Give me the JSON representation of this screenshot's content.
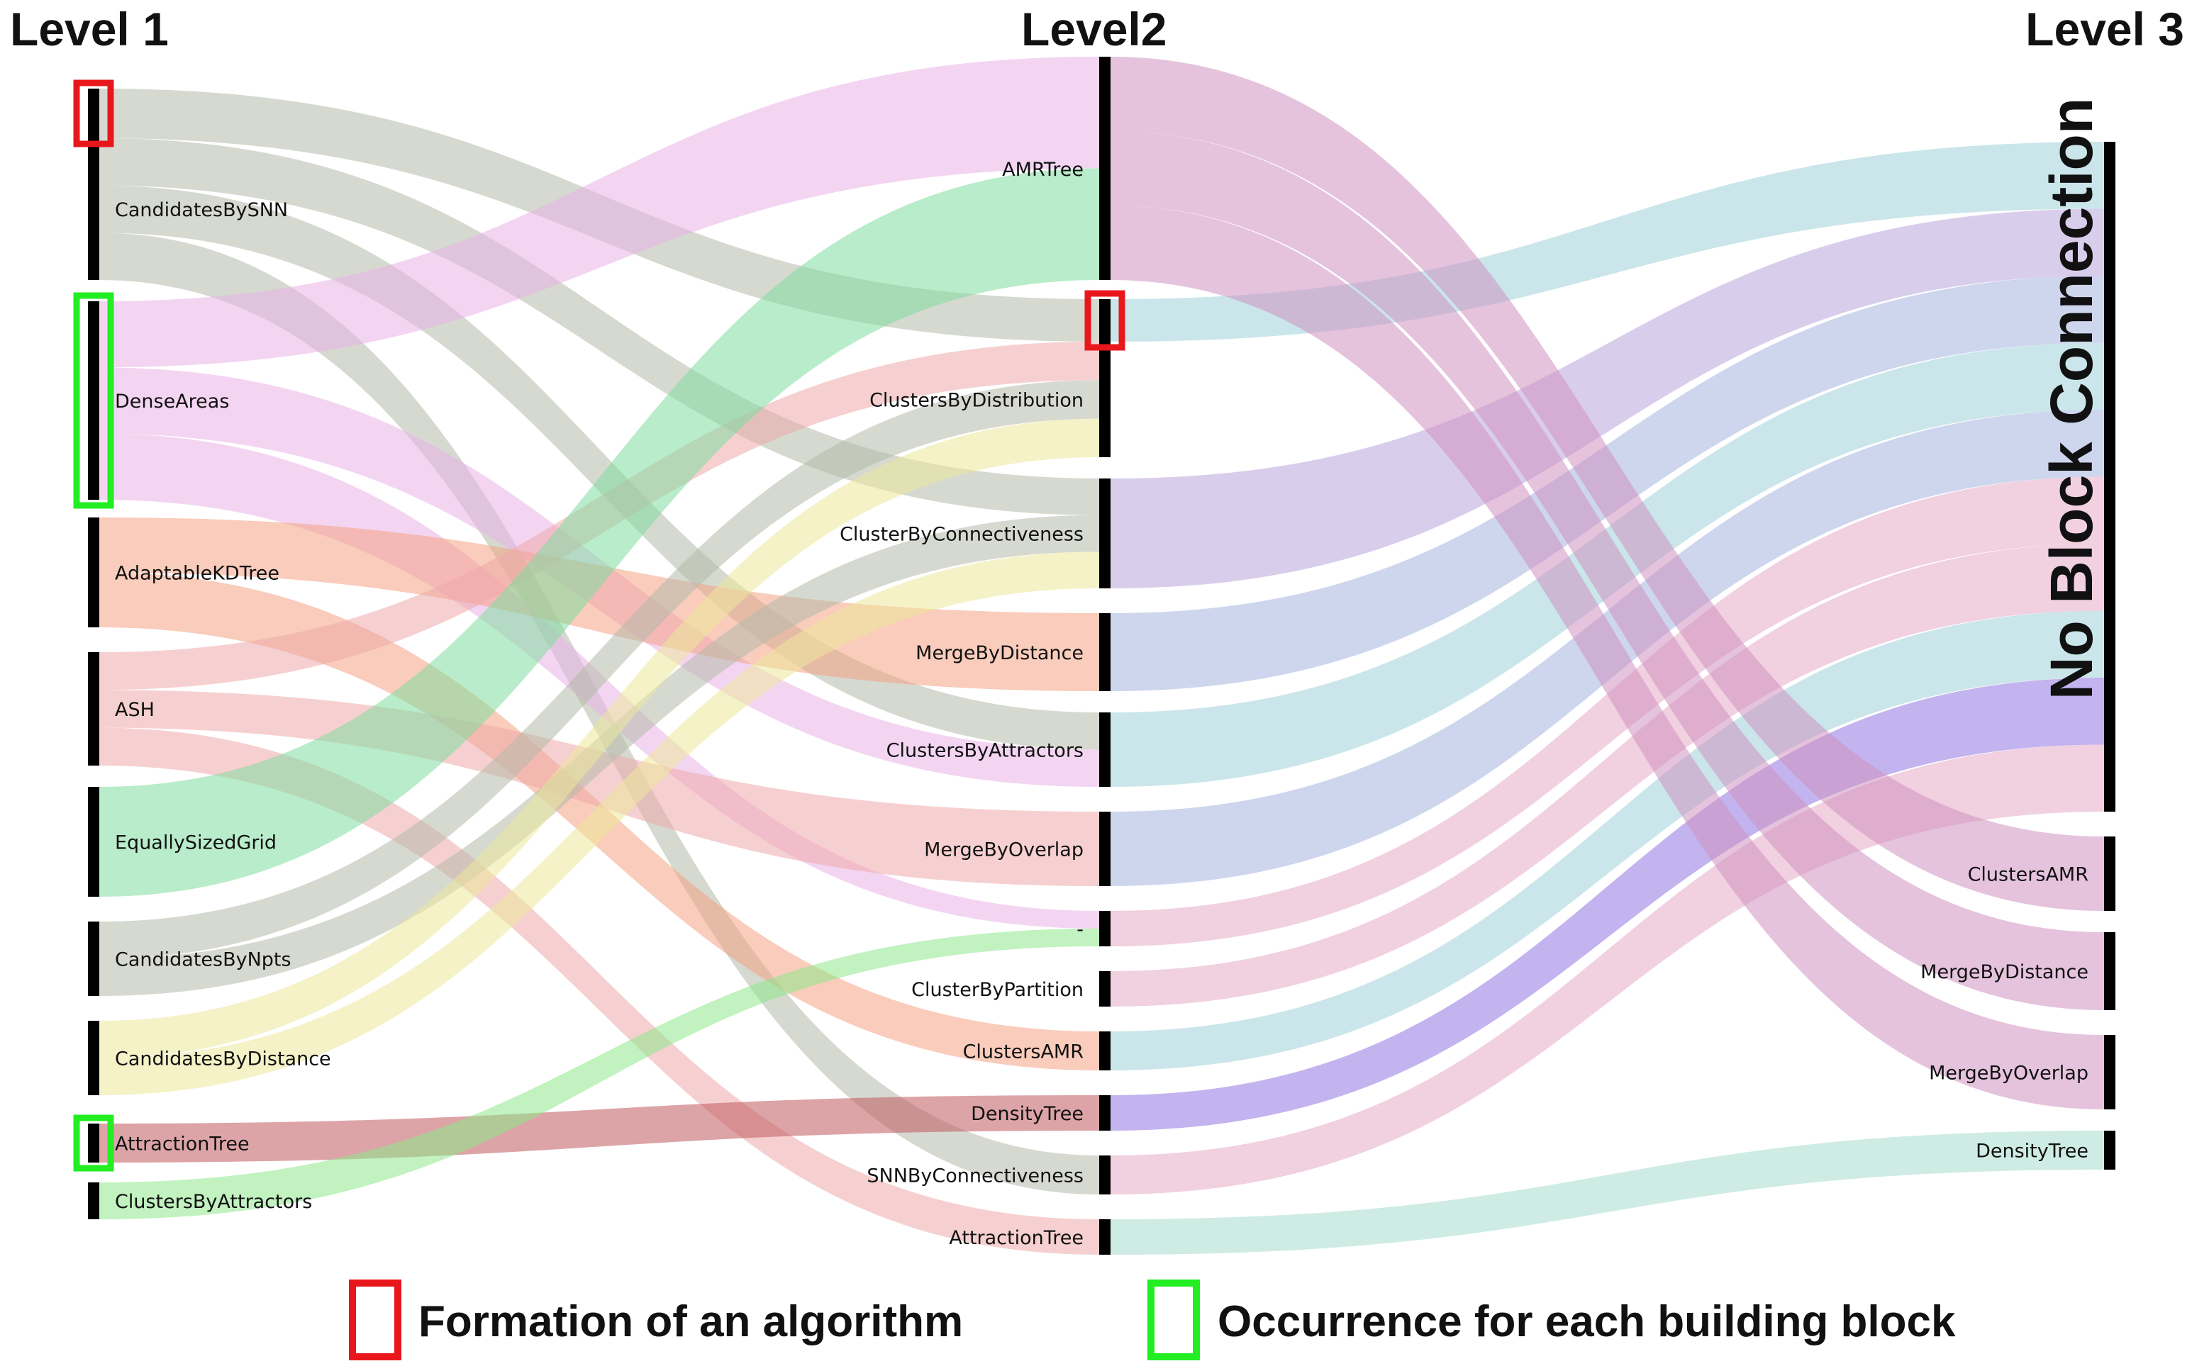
{
  "levels": {
    "level1_title": "Level 1",
    "level2_title": "Level2",
    "level3_title": "Level 3"
  },
  "level1_nodes": [
    "",
    "CandidatesBySNN",
    "DenseAreas",
    "AdaptableKDTree",
    "ASH",
    "EquallySizedGrid",
    "CandidatesByNpts",
    "CandidatesByDistance",
    "AttractionTree",
    "ClustersByAttractors"
  ],
  "level2_nodes": [
    "AMRTree",
    "",
    "ClustersByDistribution",
    "ClusterByConnectiveness",
    "MergeByDistance",
    "ClustersByAttractors",
    "MergeByOverlap",
    "-",
    "ClusterByPartition",
    "ClustersAMR",
    "DensityTree",
    "SNNByConnectiveness",
    "AttractionTree"
  ],
  "level3_nodes": [
    "No Block Connection",
    "ClustersAMR",
    "MergeByDistance",
    "MergeByOverlap",
    "DensityTree"
  ],
  "legend": {
    "formation_label": "Formation of an algorithm",
    "occurrence_label": "Occurrence for each building block",
    "formation_color": "#e8171c",
    "occurrence_color": "#22ee22"
  },
  "highlights": [
    {
      "type": "formation",
      "level": 1,
      "node": 0
    },
    {
      "type": "formation",
      "level": 2,
      "node": 1
    },
    {
      "type": "occurrence",
      "level": 1,
      "node": 2
    },
    {
      "type": "occurrence",
      "level": 1,
      "node": 8
    }
  ],
  "link_colors": {
    "gray": "#b4b9a9",
    "pink": "#eab2e8",
    "green": "#7fdc9f",
    "salmon": "#f4a383",
    "lightpink": "#eeaaaa",
    "yellow": "#ece79a",
    "brightgreen": "#8ee88a",
    "darkred": "#c05a5f",
    "teal": "#9ed1d8",
    "lavender": "#b9a4dc",
    "blue": "#a5b4e0",
    "mauve": "#cf91c1",
    "purple": "#9175e0",
    "mint": "#a6dccd",
    "rosy": "#e5a9c7"
  },
  "links_l1_l2": [
    {
      "from": 0,
      "to": 1,
      "color": "gray"
    },
    {
      "from": 1,
      "to": 3,
      "color": "gray"
    },
    {
      "from": 1,
      "to": 5,
      "color": "gray"
    },
    {
      "from": 1,
      "to": 11,
      "color": "gray"
    },
    {
      "from": 2,
      "to": 0,
      "color": "pink"
    },
    {
      "from": 2,
      "to": 5,
      "color": "pink"
    },
    {
      "from": 2,
      "to": 7,
      "color": "pink"
    },
    {
      "from": 3,
      "to": 4,
      "color": "salmon"
    },
    {
      "from": 3,
      "to": 9,
      "color": "salmon"
    },
    {
      "from": 4,
      "to": 2,
      "color": "lightpink"
    },
    {
      "from": 4,
      "to": 6,
      "color": "lightpink"
    },
    {
      "from": 4,
      "to": 12,
      "color": "lightpink"
    },
    {
      "from": 5,
      "to": 0,
      "color": "green"
    },
    {
      "from": 6,
      "to": 2,
      "color": "gray"
    },
    {
      "from": 6,
      "to": 3,
      "color": "gray"
    },
    {
      "from": 7,
      "to": 2,
      "color": "yellow"
    },
    {
      "from": 7,
      "to": 3,
      "color": "yellow"
    },
    {
      "from": 8,
      "to": 10,
      "color": "darkred"
    },
    {
      "from": 9,
      "to": 7,
      "color": "brightgreen"
    }
  ],
  "links_l2_l3": [
    {
      "from": 1,
      "to": 0,
      "color": "teal"
    },
    {
      "from": 3,
      "to": 0,
      "color": "lavender"
    },
    {
      "from": 4,
      "to": 0,
      "color": "blue"
    },
    {
      "from": 5,
      "to": 0,
      "color": "teal"
    },
    {
      "from": 6,
      "to": 0,
      "color": "blue"
    },
    {
      "from": 7,
      "to": 0,
      "color": "rosy"
    },
    {
      "from": 8,
      "to": 0,
      "color": "rosy"
    },
    {
      "from": 9,
      "to": 0,
      "color": "teal"
    },
    {
      "from": 10,
      "to": 0,
      "color": "purple"
    },
    {
      "from": 11,
      "to": 0,
      "color": "rosy"
    },
    {
      "from": 0,
      "to": 1,
      "color": "mauve"
    },
    {
      "from": 0,
      "to": 2,
      "color": "mauve"
    },
    {
      "from": 0,
      "to": 3,
      "color": "mauve"
    },
    {
      "from": 12,
      "to": 4,
      "color": "mint"
    }
  ]
}
